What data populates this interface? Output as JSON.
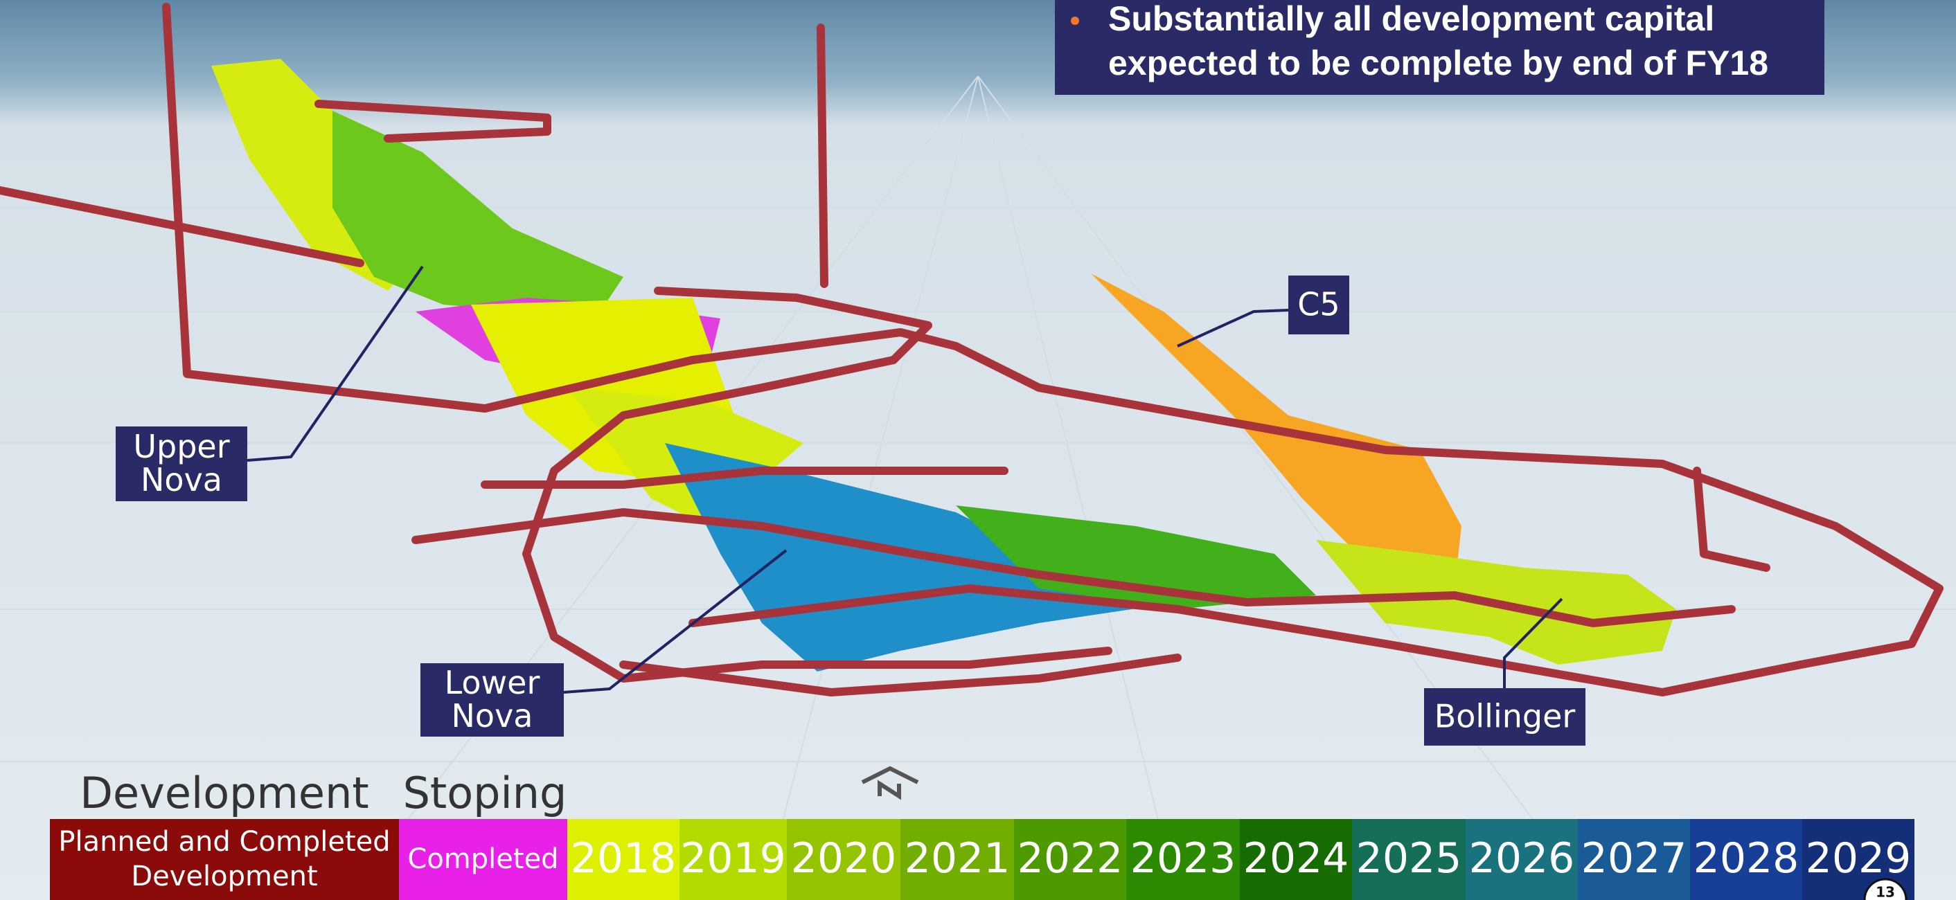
{
  "bullet": "Substantially all development capital expected to be complete by end of FY18",
  "callouts": [
    {
      "label": "Upper Nova"
    },
    {
      "label": "Lower Nova"
    },
    {
      "label": "C5"
    },
    {
      "label": "Bollinger"
    }
  ],
  "legend": {
    "headings": [
      "Development",
      "Stoping"
    ],
    "cells": [
      {
        "label": "Planned and Completed Development",
        "color": "#8b0a0a"
      },
      {
        "label": "Completed",
        "color": "#e820e8"
      },
      {
        "label": "2018",
        "color": "#dcf000"
      },
      {
        "label": "2019",
        "color": "#b2dc00"
      },
      {
        "label": "2020",
        "color": "#94c400"
      },
      {
        "label": "2021",
        "color": "#72ae00"
      },
      {
        "label": "2022",
        "color": "#4c9a00"
      },
      {
        "label": "2023",
        "color": "#2c8a00"
      },
      {
        "label": "2024",
        "color": "#176c00"
      },
      {
        "label": "2025",
        "color": "#156e58"
      },
      {
        "label": "2026",
        "color": "#1a727e"
      },
      {
        "label": "2027",
        "color": "#1a5a96"
      },
      {
        "label": "2028",
        "color": "#173f98"
      },
      {
        "label": "2029",
        "color": "#142f78"
      }
    ]
  },
  "page_number": "13"
}
